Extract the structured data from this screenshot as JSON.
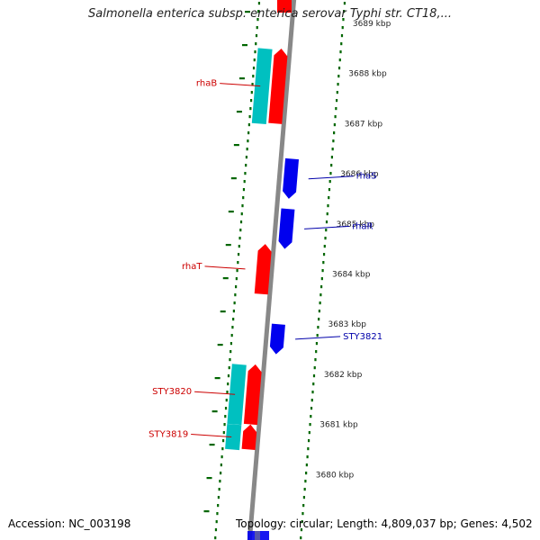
{
  "title": "Salmonella enterica subsp. enterica serovar Typhi str. CT18,...",
  "footer": {
    "accession": "Accession: NC_003198",
    "topology": "Topology: circular; Length: 4,809,037 bp; Genes: 4,502"
  },
  "colors": {
    "forward_cds": "#ff0000",
    "reverse_cds": "#0000ee",
    "cyan_feature": "#00c0c0",
    "backbone": "#888888",
    "tick": "#006600",
    "forward_label": "#cc0000",
    "reverse_label": "#0000aa"
  },
  "ticks": [
    "3689 kbp",
    "3688 kbp",
    "3687 kbp",
    "3686 kbp",
    "3685 kbp",
    "3684 kbp",
    "3683 kbp",
    "3682 kbp",
    "3681 kbp",
    "3680 kbp"
  ],
  "genes": [
    {
      "label": "rhaB",
      "strand": "forward",
      "start_kbp": 3687.0,
      "end_kbp": 3688.5
    },
    {
      "label": "rhaS",
      "strand": "reverse",
      "start_kbp": 3685.5,
      "end_kbp": 3686.3
    },
    {
      "label": "rhaR",
      "strand": "reverse",
      "start_kbp": 3684.5,
      "end_kbp": 3685.3
    },
    {
      "label": "rhaT",
      "strand": "forward",
      "start_kbp": 3683.6,
      "end_kbp": 3684.6
    },
    {
      "label": "STY3821",
      "strand": "reverse",
      "start_kbp": 3682.4,
      "end_kbp": 3683.0
    },
    {
      "label": "STY3820",
      "strand": "forward",
      "start_kbp": 3681.0,
      "end_kbp": 3682.2
    },
    {
      "label": "STY3819",
      "strand": "forward",
      "start_kbp": 3680.5,
      "end_kbp": 3681.0
    }
  ]
}
